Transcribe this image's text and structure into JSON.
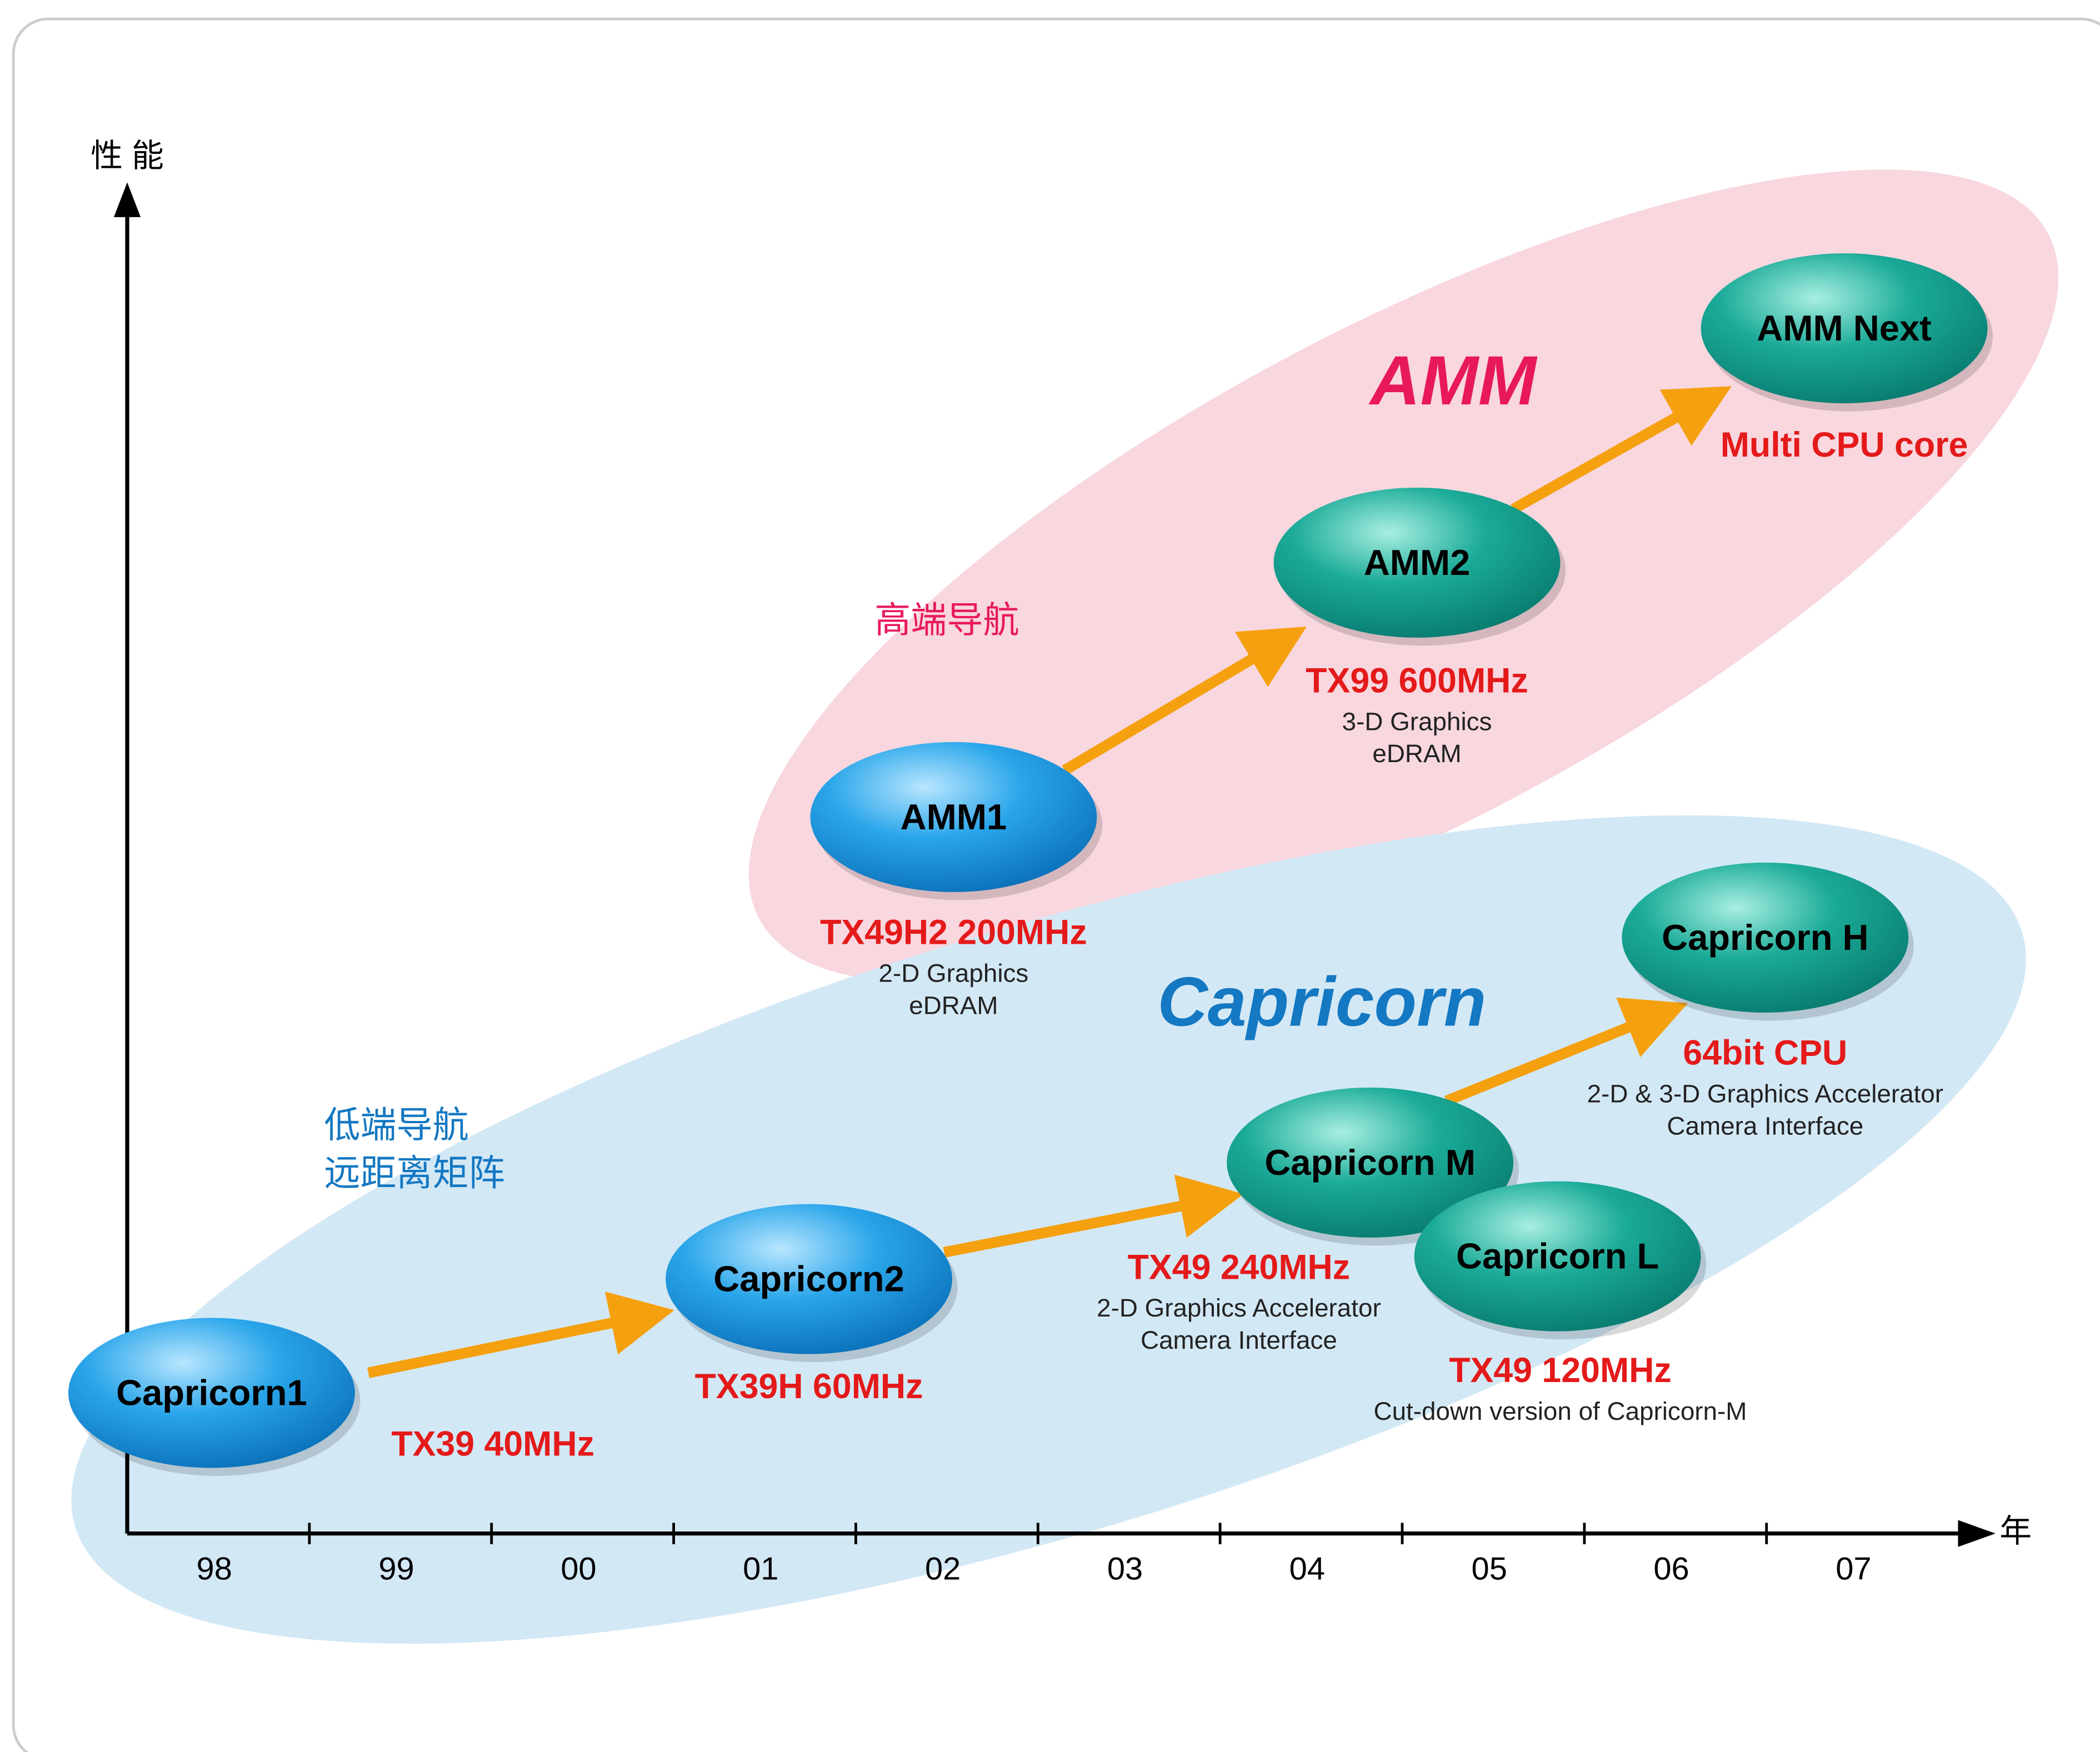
{
  "axes": {
    "y_label": "性 能",
    "x_label": "年",
    "years": [
      "98",
      "99",
      "00",
      "01",
      "02",
      "03",
      "04",
      "05",
      "06",
      "07"
    ]
  },
  "groups": [
    {
      "name": "AMM",
      "notes": [
        "高端导航"
      ]
    },
    {
      "name": "Capricorn",
      "notes": [
        "低端导航",
        "远距离矩阵"
      ]
    }
  ],
  "nodes": [
    {
      "label": "Capricorn1",
      "spec": "TX39 40MHz",
      "details": []
    },
    {
      "label": "Capricorn2",
      "spec": "TX39H 60MHz",
      "details": []
    },
    {
      "label": "Capricorn M",
      "spec": "TX49 240MHz",
      "details": [
        "2-D Graphics Accelerator",
        "Camera Interface"
      ]
    },
    {
      "label": "Capricorn L",
      "spec": "TX49 120MHz",
      "details": [
        "Cut-down version of Capricorn-M"
      ]
    },
    {
      "label": "Capricorn H",
      "spec": "64bit CPU",
      "details": [
        "2-D & 3-D Graphics Accelerator",
        "Camera Interface"
      ]
    },
    {
      "label": "AMM1",
      "spec": "TX49H2 200MHz",
      "details": [
        "2-D Graphics",
        "eDRAM"
      ]
    },
    {
      "label": "AMM2",
      "spec": "TX99 600MHz",
      "details": [
        "3-D Graphics",
        "eDRAM"
      ]
    },
    {
      "label": "AMM Next",
      "spec": "Multi CPU core",
      "details": []
    }
  ]
}
